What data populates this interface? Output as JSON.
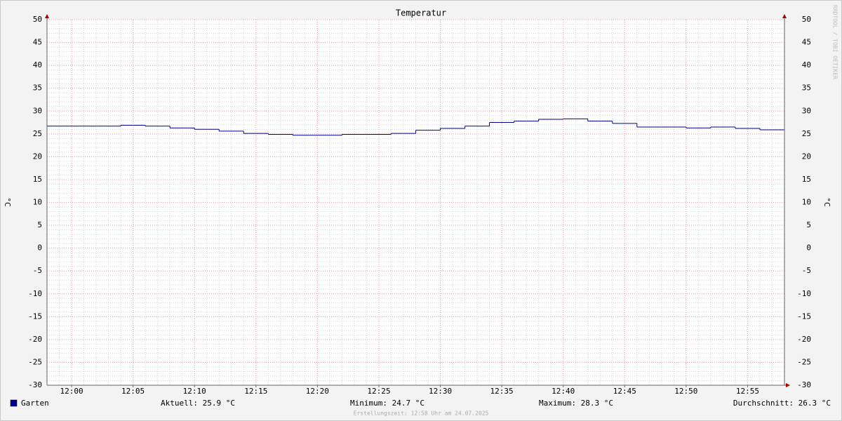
{
  "chart_data": {
    "type": "step",
    "title": "Temperatur",
    "y_label": "°C",
    "watermark": "RRDTOOL / TOBI OETIKER",
    "footer": "Erstellungszeit: 12:58 Uhr am 24.07.2025",
    "x": [
      "11:58",
      "12:00",
      "12:02",
      "12:04",
      "12:06",
      "12:08",
      "12:10",
      "12:12",
      "12:14",
      "12:16",
      "12:18",
      "12:20",
      "12:22",
      "12:24",
      "12:26",
      "12:28",
      "12:30",
      "12:32",
      "12:34",
      "12:36",
      "12:38",
      "12:40",
      "12:42",
      "12:44",
      "12:46",
      "12:48",
      "12:50",
      "12:52",
      "12:54",
      "12:56"
    ],
    "series": [
      {
        "name": "Garten",
        "color": "#00008b",
        "values": [
          26.7,
          26.7,
          26.7,
          26.9,
          26.7,
          26.3,
          26.0,
          25.6,
          25.1,
          24.9,
          24.7,
          24.7,
          24.9,
          24.9,
          25.1,
          25.8,
          26.2,
          26.7,
          27.5,
          27.8,
          28.2,
          28.3,
          27.8,
          27.3,
          26.5,
          26.5,
          26.3,
          26.5,
          26.2,
          25.9
        ]
      }
    ],
    "stats": [
      "Aktuell: 25.9 °C",
      "Minimum: 24.7 °C",
      "Maximum: 28.3 °C",
      "Durchschnitt: 26.3 °C"
    ],
    "xlim": [
      "11:58",
      "12:58"
    ],
    "xticks": [
      "12:00",
      "12:05",
      "12:10",
      "12:15",
      "12:20",
      "12:25",
      "12:30",
      "12:35",
      "12:40",
      "12:45",
      "12:50",
      "12:55"
    ],
    "ylim": [
      -30,
      50
    ],
    "yticks": [
      -30,
      -25,
      -20,
      -15,
      -10,
      -5,
      0,
      5,
      10,
      15,
      20,
      25,
      30,
      35,
      40,
      45,
      50
    ],
    "grid": true
  }
}
